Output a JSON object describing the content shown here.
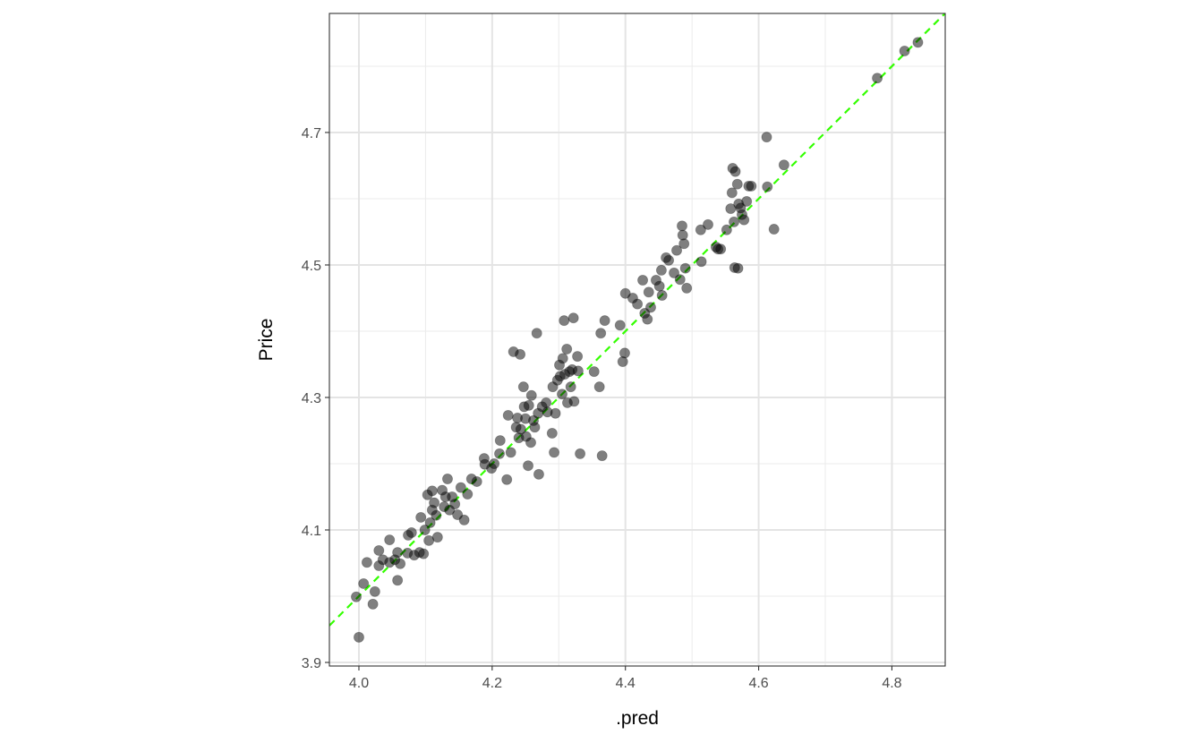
{
  "chart_data": {
    "type": "scatter",
    "title": "",
    "xlabel": ".pred",
    "ylabel": "Price",
    "xlim": [
      3.9557,
      4.88
    ],
    "ylim": [
      3.8946,
      4.8797
    ],
    "xticks": [
      4.0,
      4.2,
      4.4,
      4.6,
      4.8
    ],
    "xtick_labels": [
      "4.0",
      "4.2",
      "4.4",
      "4.6",
      "4.8"
    ],
    "yticks": [
      3.9,
      4.1,
      4.3,
      4.5,
      4.7
    ],
    "ytick_labels": [
      "3.9",
      "4.1",
      "4.3",
      "4.5",
      "4.7"
    ],
    "grid": true,
    "theme": "bw",
    "point_color": "#000000",
    "point_alpha": 0.5,
    "reference_line": {
      "type": "identity",
      "slope": 1,
      "intercept": 0,
      "style": "dashed",
      "color": "#33FF00"
    },
    "x": [
      4.0,
      3.996,
      4.007,
      4.012,
      4.021,
      4.024,
      4.03,
      4.03,
      4.036,
      4.046,
      4.046,
      4.054,
      4.058,
      4.058,
      4.062,
      4.073,
      4.074,
      4.079,
      4.083,
      4.091,
      4.093,
      4.097,
      4.099,
      4.103,
      4.105,
      4.107,
      4.11,
      4.11,
      4.113,
      4.116,
      4.118,
      4.125,
      4.128,
      4.13,
      4.133,
      4.136,
      4.14,
      4.144,
      4.148,
      4.153,
      4.158,
      4.163,
      4.169,
      4.177,
      4.188,
      4.189,
      4.199,
      4.203,
      4.211,
      4.212,
      4.222,
      4.224,
      4.228,
      4.232,
      4.236,
      4.238,
      4.24,
      4.242,
      4.243,
      4.247,
      4.248,
      4.25,
      4.251,
      4.254,
      4.255,
      4.258,
      4.259,
      4.262,
      4.264,
      4.267,
      4.269,
      4.27,
      4.275,
      4.281,
      4.283,
      4.29,
      4.291,
      4.293,
      4.295,
      4.298,
      4.301,
      4.302,
      4.305,
      4.306,
      4.308,
      4.309,
      4.312,
      4.313,
      4.316,
      4.318,
      4.32,
      4.322,
      4.323,
      4.328,
      4.329,
      4.332,
      4.353,
      4.361,
      4.363,
      4.365,
      4.369,
      4.392,
      4.396,
      4.399,
      4.4,
      4.411,
      4.418,
      4.426,
      4.429,
      4.433,
      4.435,
      4.438,
      4.446,
      4.451,
      4.454,
      4.455,
      4.461,
      4.465,
      4.473,
      4.477,
      4.482,
      4.485,
      4.486,
      4.488,
      4.49,
      4.492,
      4.513,
      4.514,
      4.524,
      4.536,
      4.539,
      4.543,
      4.552,
      4.558,
      4.56,
      4.561,
      4.563,
      4.564,
      4.565,
      4.568,
      4.569,
      4.57,
      4.573,
      4.575,
      4.578,
      4.582,
      4.585,
      4.589,
      4.612,
      4.613,
      4.623,
      4.638,
      4.778,
      4.819,
      4.839
    ],
    "y": [
      3.938,
      3.999,
      4.019,
      4.051,
      3.988,
      4.007,
      4.069,
      4.046,
      4.055,
      4.085,
      4.051,
      4.055,
      4.066,
      4.024,
      4.049,
      4.065,
      4.092,
      4.096,
      4.062,
      4.066,
      4.119,
      4.064,
      4.1,
      4.153,
      4.084,
      4.111,
      4.159,
      4.13,
      4.141,
      4.122,
      4.089,
      4.16,
      4.135,
      4.15,
      4.177,
      4.13,
      4.15,
      4.139,
      4.123,
      4.164,
      4.115,
      4.154,
      4.177,
      4.173,
      4.208,
      4.199,
      4.193,
      4.2,
      4.215,
      4.235,
      4.176,
      4.273,
      4.217,
      4.369,
      4.255,
      4.269,
      4.239,
      4.365,
      4.252,
      4.316,
      4.286,
      4.268,
      4.241,
      4.197,
      4.288,
      4.232,
      4.303,
      4.265,
      4.255,
      4.397,
      4.276,
      4.184,
      4.286,
      4.292,
      4.278,
      4.246,
      4.316,
      4.217,
      4.276,
      4.326,
      4.349,
      4.332,
      4.305,
      4.359,
      4.416,
      4.335,
      4.373,
      4.292,
      4.339,
      4.316,
      4.342,
      4.42,
      4.294,
      4.362,
      4.34,
      4.215,
      4.339,
      4.316,
      4.397,
      4.212,
      4.416,
      4.409,
      4.354,
      4.367,
      4.457,
      4.45,
      4.441,
      4.477,
      4.427,
      4.418,
      4.459,
      4.436,
      4.477,
      4.468,
      4.492,
      4.454,
      4.511,
      4.507,
      4.488,
      4.522,
      4.478,
      4.559,
      4.545,
      4.532,
      4.495,
      4.465,
      4.553,
      4.505,
      4.561,
      4.527,
      4.524,
      4.524,
      4.553,
      4.585,
      4.609,
      4.646,
      4.565,
      4.496,
      4.641,
      4.622,
      4.495,
      4.592,
      4.586,
      4.576,
      4.568,
      4.596,
      4.619,
      4.619,
      4.693,
      4.618,
      4.554,
      4.651,
      4.782,
      4.823,
      4.836
    ]
  }
}
